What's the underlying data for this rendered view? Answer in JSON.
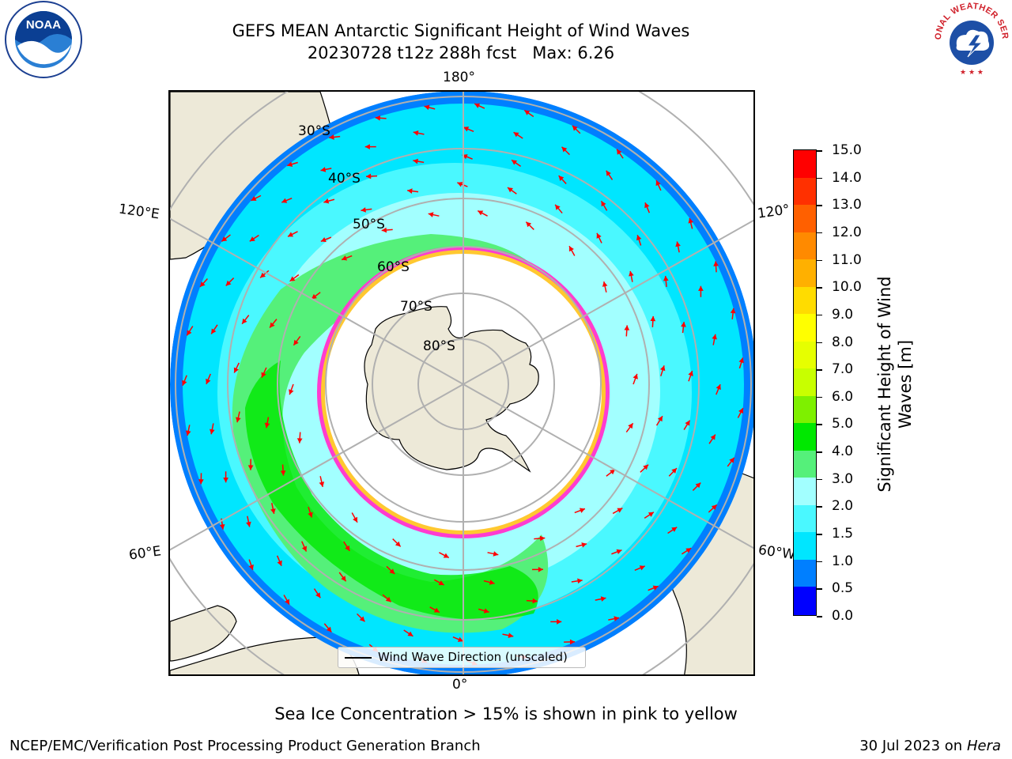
{
  "title": {
    "line1": "GEFS MEAN Antarctic Significant Height of Wind Waves",
    "line2": "20230728 t12z 288h fcst   Max: 6.26"
  },
  "map": {
    "projection": "south-polar-stereographic",
    "longitude_labels": {
      "top": "180°",
      "bottom": "0°",
      "upper_left": "120°E",
      "upper_right": "120°",
      "lower_left": "60°E",
      "lower_right": "60°W"
    },
    "latitude_labels": [
      "30°S",
      "40°S",
      "50°S",
      "60°S",
      "70°S",
      "80°S"
    ],
    "colors": {
      "land": "#ede9d8",
      "coast": "#000000",
      "gridlines": "#b0b0b0",
      "sea_ice": "#ff3ccf",
      "sea_ice_edge": "#ffc830",
      "wave_arrows": "#ff0000"
    }
  },
  "legend": {
    "label": "Wind Wave Direction (unscaled)"
  },
  "colorbar": {
    "title": "Significant Height of Wind Waves [m]",
    "ticks": [
      "15.0",
      "14.0",
      "13.0",
      "12.0",
      "11.0",
      "10.0",
      "9.0",
      "8.0",
      "7.0",
      "6.0",
      "5.0",
      "4.0",
      "3.0",
      "2.0",
      "1.5",
      "1.0",
      "0.5",
      "0.0"
    ],
    "colors": [
      "#ff0000",
      "#ff3000",
      "#ff6000",
      "#ff8a00",
      "#ffb000",
      "#ffdc00",
      "#ffff00",
      "#e6ff00",
      "#c8ff00",
      "#7ef000",
      "#00e800",
      "#55f07a",
      "#a2ffff",
      "#4af8ff",
      "#00e6ff",
      "#007fff",
      "#0000ff"
    ]
  },
  "note": "Sea Ice Concentration > 15% is shown in pink to yellow",
  "footer": {
    "left": "NCEP/EMC/Verification Post Processing Product Generation Branch",
    "right_prefix": "30 Jul 2023 on ",
    "right_italic": "Hera"
  },
  "logos": {
    "left": "NOAA",
    "right": "NATIONAL WEATHER SERVICE"
  }
}
